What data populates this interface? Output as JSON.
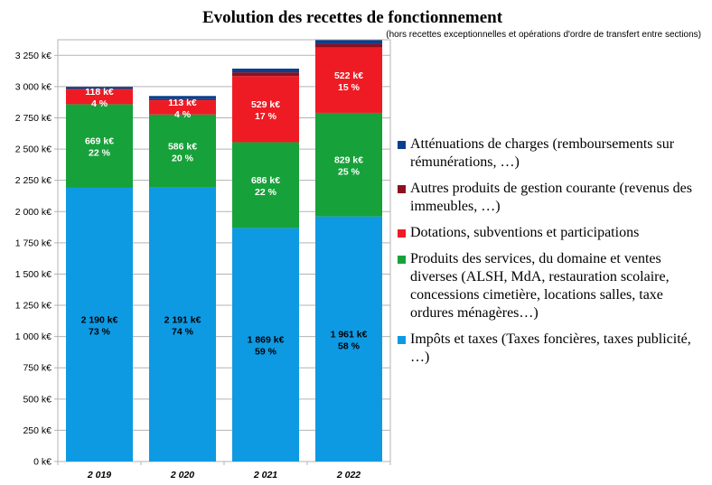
{
  "chart_data": {
    "type": "bar",
    "stacked": true,
    "title": "Evolution des recettes de fonctionnement",
    "subtitle": "(hors recettes exceptionnelles et opérations d'ordre de transfert entre sections)",
    "categories": [
      "2 019",
      "2 020",
      "2 021",
      "2 022"
    ],
    "ylim": [
      0,
      3375
    ],
    "yticks": [
      "0 k€",
      "250 k€",
      "500 k€",
      "750 k€",
      "1 000 k€",
      "1 250 k€",
      "1 500 k€",
      "1 750 k€",
      "2 000 k€",
      "2 250 k€",
      "2 500 k€",
      "2 750 k€",
      "3 000 k€",
      "3 250 k€"
    ],
    "grid": true,
    "legend_position": "right",
    "series": [
      {
        "name": "Impôts et taxes (Taxes foncières, taxes publicité, …)",
        "color": "#0e9ae3",
        "values": [
          2190,
          2191,
          1869,
          1961
        ],
        "labels": [
          "2 190 k€",
          "2 191 k€",
          "1 869 k€",
          "1 961 k€"
        ],
        "percents": [
          "73 %",
          "74 %",
          "59 %",
          "58 %"
        ],
        "label_color": "#000000"
      },
      {
        "name": "Produits des services, du domaine et ventes diverses (ALSH, MdA, restauration scolaire, concessions cimetière, locations salles, taxe ordures ménagères…)",
        "color": "#17a13a",
        "values": [
          669,
          586,
          686,
          829
        ],
        "labels": [
          "669 k€",
          "586 k€",
          "686 k€",
          "829 k€"
        ],
        "percents": [
          "22 %",
          "20 %",
          "22 %",
          "25 %"
        ],
        "label_color": "#ffffff"
      },
      {
        "name": "Dotations, subventions et participations",
        "color": "#ee1b24",
        "values": [
          118,
          113,
          529,
          522
        ],
        "labels": [
          "118 k€",
          "113 k€",
          "529 k€",
          "522 k€"
        ],
        "percents": [
          "4 %",
          "4 %",
          "17 %",
          "15 %"
        ],
        "label_color": "#ffffff"
      },
      {
        "name": "Autres produits de gestion courante (revenus des immeubles, …)",
        "color": "#8b1020",
        "values": [
          6,
          10,
          30,
          30
        ],
        "labels": [],
        "percents": []
      },
      {
        "name": "Atténuations de charges (remboursements sur rémunérations, …)",
        "color": "#0b3f8c",
        "values": [
          15,
          25,
          30,
          30
        ],
        "labels": [],
        "percents": []
      }
    ],
    "legend_order": [
      4,
      3,
      2,
      1,
      0
    ]
  }
}
